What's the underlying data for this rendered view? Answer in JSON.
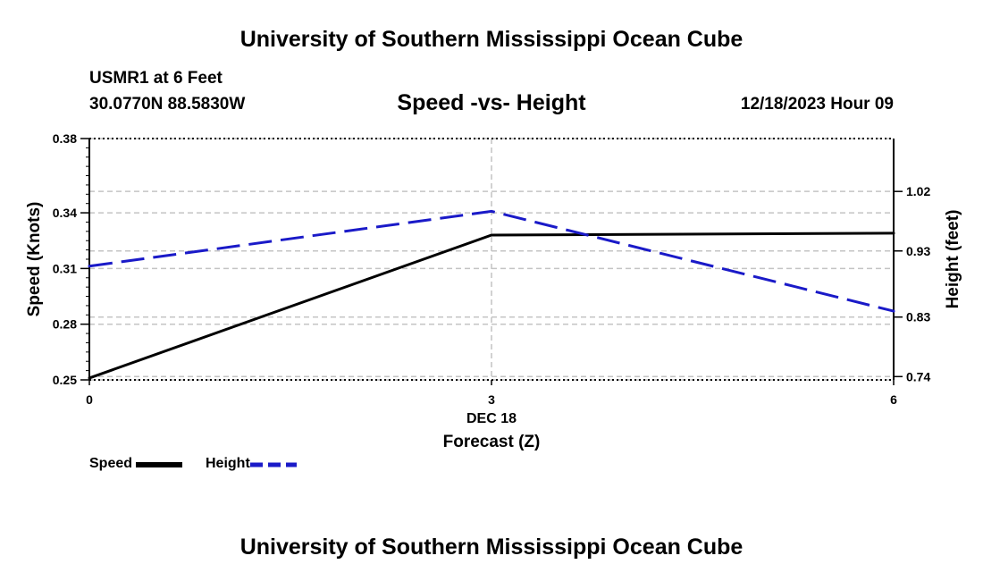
{
  "page": {
    "title_top": "University of Southern Mississippi Ocean Cube",
    "title_bottom": "University of Southern Mississippi Ocean Cube",
    "station_name": "USMR1 at 6 Feet",
    "station_coords": "30.0770N  88.5830W",
    "datetime": "12/18/2023 Hour 09"
  },
  "chart_data": {
    "type": "line",
    "title": "Speed -vs- Height",
    "xlabel": "Forecast (Z)",
    "x_date_label": "DEC 18",
    "x": [
      0,
      3,
      6
    ],
    "x_tick_labels": [
      "0",
      "3",
      "6"
    ],
    "xlim": [
      0,
      6
    ],
    "ylabel_left": "Speed (Knots)",
    "ylabel_right": "Height (feet)",
    "ylim_left": [
      0.25,
      0.38
    ],
    "ylim_right": [
      0.735,
      1.1
    ],
    "y_ticks_left": [
      0.25,
      0.28,
      0.31,
      0.34,
      0.38
    ],
    "y_ticks_right": [
      0.74,
      0.83,
      0.93,
      1.02
    ],
    "grid": true,
    "legend_position": "bottom-left",
    "series": [
      {
        "name": "Speed",
        "axis": "left",
        "color": "#000000",
        "dash": "solid",
        "values": [
          0.251,
          0.328,
          0.329
        ]
      },
      {
        "name": "Height",
        "axis": "right",
        "color": "#1a1ac8",
        "dash": "dashed",
        "values": [
          0.907,
          0.99,
          0.839
        ]
      }
    ]
  }
}
